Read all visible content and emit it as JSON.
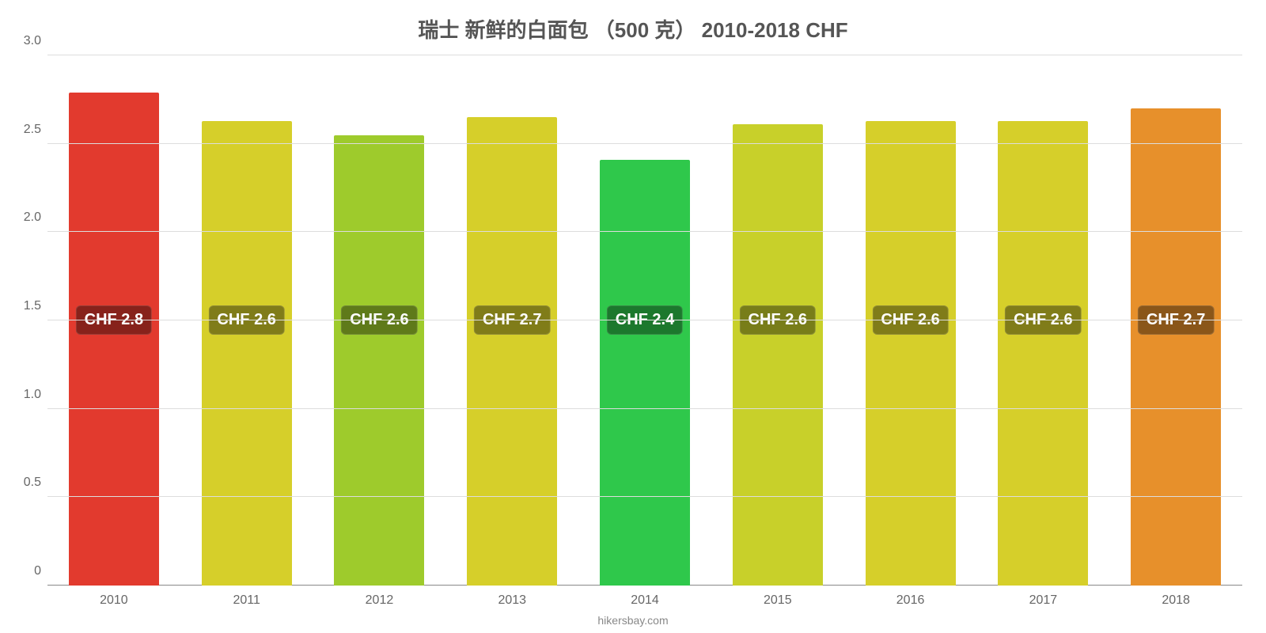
{
  "chart": {
    "type": "bar",
    "title": "瑞士 新鲜的白面包 （500 克） 2010-2018 CHF",
    "title_fontsize": 26,
    "title_color": "#555555",
    "background_color": "#ffffff",
    "grid_color": "#dddddd",
    "axis_color": "#888888",
    "label_color": "#666666",
    "ylabel_fontsize": 16,
    "xlabel_fontsize": 16,
    "badge_fontsize": 20,
    "ylim": [
      0,
      3.0
    ],
    "ytick_step": 0.5,
    "yticks": [
      "0",
      "0.5",
      "1.0",
      "1.5",
      "2.0",
      "2.5",
      "3.0"
    ],
    "bar_width_pct": 68,
    "badge_y_value": 1.5,
    "categories": [
      "2010",
      "2011",
      "2012",
      "2013",
      "2014",
      "2015",
      "2016",
      "2017",
      "2018"
    ],
    "values": [
      2.79,
      2.63,
      2.55,
      2.65,
      2.41,
      2.61,
      2.63,
      2.63,
      2.7
    ],
    "value_labels": [
      "CHF 2.8",
      "CHF 2.6",
      "CHF 2.6",
      "CHF 2.7",
      "CHF 2.4",
      "CHF 2.6",
      "CHF 2.6",
      "CHF 2.6",
      "CHF 2.7"
    ],
    "bar_colors": [
      "#e23a2e",
      "#d6cf2a",
      "#9ecb2c",
      "#d6cf2a",
      "#2fc84b",
      "#c8d02a",
      "#d6cf2a",
      "#d6cf2a",
      "#e7902b"
    ],
    "credit": "hikersbay.com",
    "credit_fontsize": 14,
    "credit_color": "#888888"
  }
}
